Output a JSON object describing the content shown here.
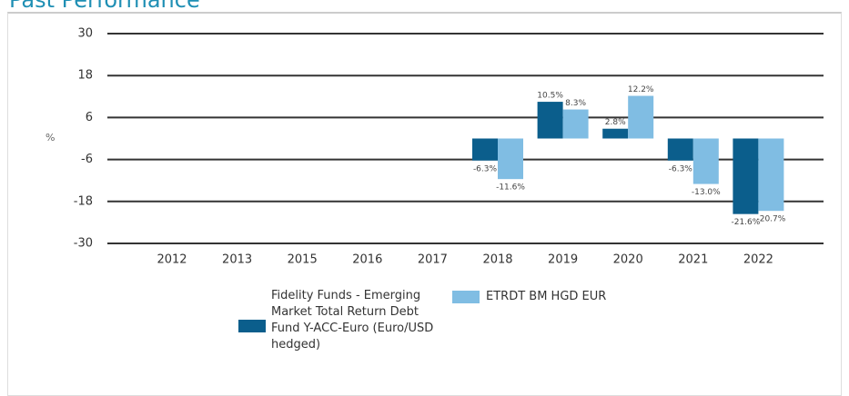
{
  "header": {
    "title": "Past Performance"
  },
  "chart_data": {
    "type": "bar",
    "y_label": "%",
    "categories": [
      "2012",
      "2013",
      "2015",
      "2016",
      "2017",
      "2018",
      "2019",
      "2020",
      "2021",
      "2022"
    ],
    "series": [
      {
        "name": "Fidelity Funds - Emerging Market Total Return Debt Fund Y-ACC-Euro (Euro/USD hedged)",
        "color": "#0b5e8c",
        "values": [
          null,
          null,
          null,
          null,
          null,
          -6.3,
          10.5,
          2.8,
          -6.3,
          -21.6
        ],
        "value_labels": [
          null,
          null,
          null,
          null,
          null,
          "-6.3%",
          "10.5%",
          "2.8%",
          "-6.3%",
          "-21.6%"
        ]
      },
      {
        "name": "ETRDT BM HGD EUR",
        "color": "#80bde3",
        "values": [
          null,
          null,
          null,
          null,
          null,
          -11.6,
          8.3,
          12.2,
          -13.0,
          -20.7
        ],
        "value_labels": [
          null,
          null,
          null,
          null,
          null,
          "-11.6%",
          "8.3%",
          "12.2%",
          "-13.0%",
          "-20.7%"
        ]
      }
    ],
    "ylim": [
      -30,
      30
    ],
    "yticks": [
      -30,
      -18,
      -6,
      6,
      18,
      30
    ],
    "grid": true
  }
}
